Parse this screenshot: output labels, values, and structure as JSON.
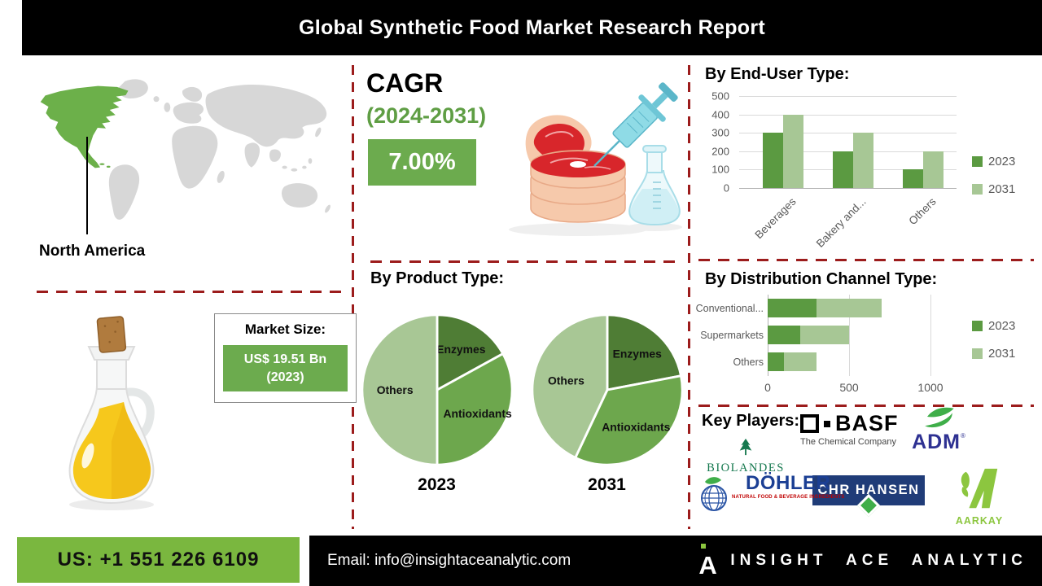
{
  "header": {
    "title": "Global Synthetic Food Market Research Report"
  },
  "region": {
    "label": "North America"
  },
  "cagr": {
    "heading": "CAGR",
    "period": "(2024-2031)",
    "value": "7.00%"
  },
  "market_size": {
    "label": "Market Size:",
    "value_line1": "US$ 19.51 Bn",
    "value_line2": "(2023)"
  },
  "key_players": {
    "title": "Key Players:",
    "companies": [
      {
        "name": "BASF",
        "tagline": "The Chemical Company"
      },
      {
        "name": "ADM",
        "reg": "®"
      },
      {
        "name": "BIOLANDES"
      },
      {
        "name": "CHR HANSEN"
      },
      {
        "name": "DÖHLER",
        "tagline": "NATURAL FOOD & BEVERAGE INGREDIENTS"
      },
      {
        "name": "AARKAY"
      }
    ]
  },
  "footer": {
    "phone": "US: +1 551 226 6109",
    "email_label": "Email:",
    "email_value": "info@insightaceanalytic.com",
    "brand_mark": "A",
    "brand": "INSIGHT ACE ANALYTIC"
  },
  "colors": {
    "series_colors": [
      "#5b9a41",
      "#a7c795"
    ],
    "pie_colors": [
      "#4f7d35",
      "#6da74d",
      "#a8c795"
    ],
    "accent_green": "#6cab4e",
    "divider_red": "#9c1c1c",
    "footer_green": "#7ab73f",
    "map_highlight": "#6cb04a"
  },
  "chart_data": [
    {
      "id": "end-user",
      "type": "bar",
      "title": "By End-User Type:",
      "categories": [
        "Beverages",
        "Bakery and...",
        "Others"
      ],
      "series": [
        {
          "name": "2023",
          "values": [
            300,
            200,
            100
          ]
        },
        {
          "name": "2031",
          "values": [
            400,
            300,
            200
          ]
        }
      ],
      "ylim": [
        0,
        500
      ],
      "yticks": [
        0,
        100,
        200,
        300,
        400,
        500
      ],
      "grid": true,
      "legend_position": "right"
    },
    {
      "id": "product-type",
      "type": "pie",
      "title": "By Product Type:",
      "pies": [
        {
          "caption": "2023",
          "slices": [
            {
              "label": "Enzymes",
              "value": 17
            },
            {
              "label": "Antioxidants",
              "value": 33
            },
            {
              "label": "Others",
              "value": 50
            }
          ]
        },
        {
          "caption": "2031",
          "slices": [
            {
              "label": "Enzymes",
              "value": 22
            },
            {
              "label": "Antioxidants",
              "value": 35
            },
            {
              "label": "Others",
              "value": 43
            }
          ]
        }
      ]
    },
    {
      "id": "distribution",
      "type": "bar-horizontal-stacked",
      "title": "By Distribution Channel Type:",
      "categories": [
        "Conventional...",
        "Supermarkets",
        "Others"
      ],
      "series": [
        {
          "name": "2023",
          "values": [
            300,
            200,
            100
          ]
        },
        {
          "name": "2031",
          "values": [
            400,
            300,
            200
          ]
        }
      ],
      "xlim": [
        0,
        1200
      ],
      "xticks": [
        0,
        500,
        1000
      ],
      "grid": true,
      "legend_position": "right"
    }
  ]
}
